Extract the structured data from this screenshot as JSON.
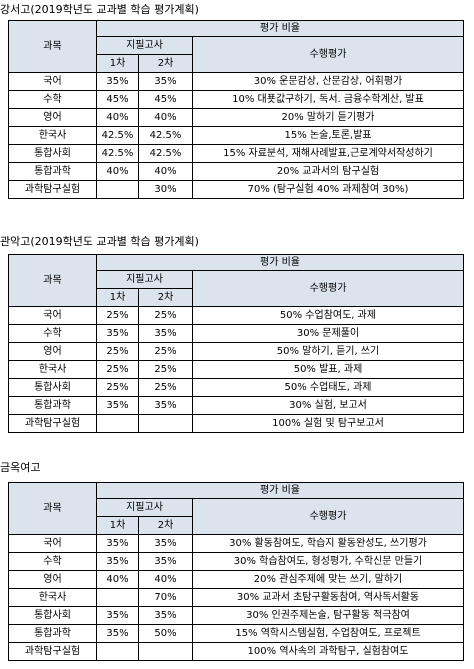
{
  "header_labels": {
    "subject": "과목",
    "score_ratio": "평가 비율",
    "written_exam": "지필고사",
    "first": "1차",
    "second": "2차",
    "performance": "수행평가"
  },
  "sections": [
    {
      "title": "강서고(2019학년도 교과별 학습 평가계획)",
      "rows": [
        {
          "subject": "국어",
          "first": "35%",
          "second": "35%",
          "performance": "30% 운문감상, 산문감상, 어휘평가"
        },
        {
          "subject": "수학",
          "first": "45%",
          "second": "45%",
          "performance": "10% 대푯값구하기, 독서. 금융수학계산, 발표"
        },
        {
          "subject": "영어",
          "first": "40%",
          "second": "40%",
          "performance": "20% 말하기 듣기평가"
        },
        {
          "subject": "한국사",
          "first": "42.5%",
          "second": "42.5%",
          "performance": "15% 논술,토론,발표"
        },
        {
          "subject": "통합사회",
          "first": "42.5%",
          "second": "42.5%",
          "performance": "15% 자료분석, 재해사례발표,근로계약서작성하기"
        },
        {
          "subject": "통합과학",
          "first": "40%",
          "second": "40%",
          "performance": "20% 교과서의 탐구실험"
        },
        {
          "subject": "과학탐구실험",
          "first": "",
          "second": "30%",
          "performance": "70% (탐구실험 40% 과제참여 30%)"
        }
      ]
    },
    {
      "title": "관악고(2019학년도 교과별 학습 평가계획)",
      "rows": [
        {
          "subject": "국어",
          "first": "25%",
          "second": "25%",
          "performance": "50% 수업참여도, 과제"
        },
        {
          "subject": "수학",
          "first": "35%",
          "second": "35%",
          "performance": "30% 문제풀이"
        },
        {
          "subject": "영어",
          "first": "25%",
          "second": "25%",
          "performance": "50% 말하기, 듣기, 쓰기"
        },
        {
          "subject": "한국사",
          "first": "25%",
          "second": "25%",
          "performance": "50% 발표, 과제"
        },
        {
          "subject": "통합사회",
          "first": "25%",
          "second": "25%",
          "performance": "50% 수업태도, 과제"
        },
        {
          "subject": "통합과학",
          "first": "35%",
          "second": "35%",
          "performance": "30% 실험, 보고서"
        },
        {
          "subject": "과학탐구실험",
          "first": "",
          "second": "",
          "performance": "100% 실험 및 탐구보고서"
        }
      ]
    },
    {
      "title": "금옥여고",
      "rows": [
        {
          "subject": "국어",
          "first": "35%",
          "second": "35%",
          "performance": "30% 활동참여도, 학습지 활동완성도, 쓰기평가"
        },
        {
          "subject": "수학",
          "first": "35%",
          "second": "35%",
          "performance": "30% 학습참여도, 형성평가, 수학신문 만들기"
        },
        {
          "subject": "영어",
          "first": "40%",
          "second": "40%",
          "performance": "20% 관심주제에 맞는 쓰기, 말하기"
        },
        {
          "subject": "한국사",
          "first": "",
          "second": "70%",
          "performance": "30% 교과서 초탐구활동참여, 역사독서활동"
        },
        {
          "subject": "통합사회",
          "first": "35%",
          "second": "35%",
          "performance": "30% 인권주제논술, 탐구활동 적극참여"
        },
        {
          "subject": "통합과학",
          "first": "35%",
          "second": "50%",
          "performance": "15% 역학시스템실험, 수업참여도, 프로젝트"
        },
        {
          "subject": "과학탐구실험",
          "first": "",
          "second": "",
          "performance": "100% 역사속의 과학탐구, 실험참여도"
        }
      ]
    }
  ]
}
